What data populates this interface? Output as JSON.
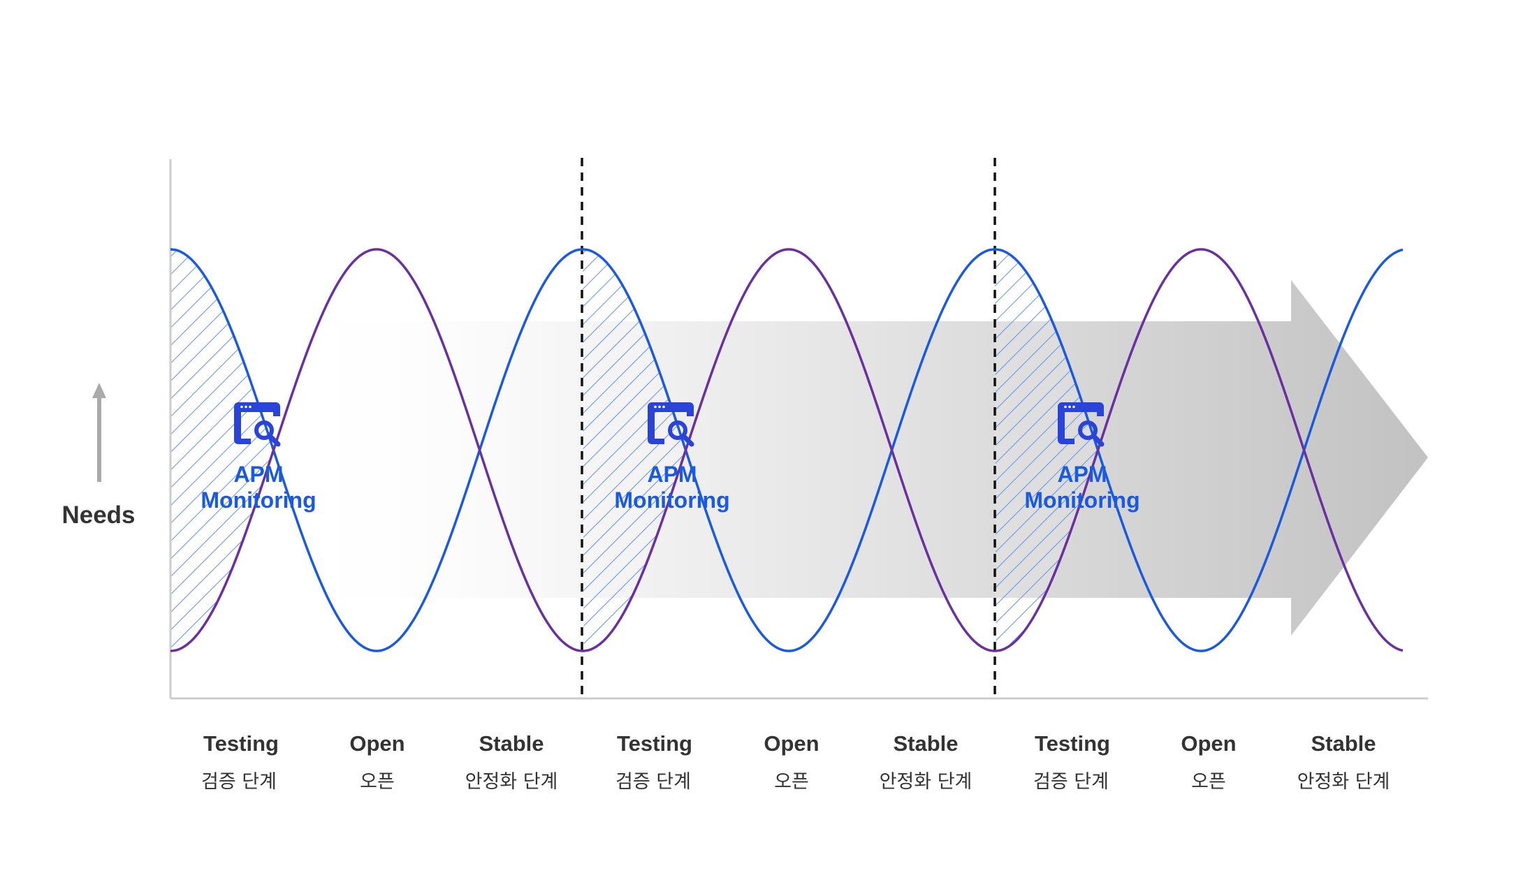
{
  "y_axis_label": "Needs",
  "monitoring": [
    {
      "line1": "APM",
      "line2": "Monitoring",
      "icon": "apm-monitor-icon"
    },
    {
      "line1": "APM",
      "line2": "Monitoring",
      "icon": "apm-monitor-icon"
    },
    {
      "line1": "APM",
      "line2": "Monitoring",
      "icon": "apm-monitor-icon"
    }
  ],
  "phases": [
    {
      "en": "Testing",
      "ko": "검증 단계"
    },
    {
      "en": "Open",
      "ko": "오픈"
    },
    {
      "en": "Stable",
      "ko": "안정화 단계"
    },
    {
      "en": "Testing",
      "ko": "검증 단계"
    },
    {
      "en": "Open",
      "ko": "오픈"
    },
    {
      "en": "Stable",
      "ko": "안정화 단계"
    },
    {
      "en": "Testing",
      "ko": "검증 단계"
    },
    {
      "en": "Open",
      "ko": "오픈"
    },
    {
      "en": "Stable",
      "ko": "안정화 단계"
    }
  ],
  "colors": {
    "blue_curve": "#1a5ae0",
    "purple_curve": "#6a2fa0",
    "accent_text": "#1a5ae0",
    "icon": "#2a43d8",
    "axis": "#cccccc",
    "hatch": "#6f95ea",
    "arrow_start": "#ffffff",
    "arrow_end": "#c2c2c2"
  }
}
